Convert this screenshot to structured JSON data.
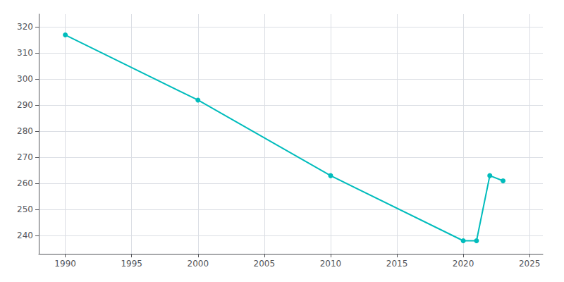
{
  "chart_data": {
    "type": "line",
    "x": [
      1990,
      2000,
      2010,
      2020,
      2021,
      2022,
      2023
    ],
    "values": [
      317,
      292,
      263,
      238,
      238,
      263,
      261
    ],
    "color": "#00BCBC",
    "marker": "circle",
    "xlim": [
      1988,
      2026
    ],
    "xticks": [
      1990,
      1995,
      2000,
      2005,
      2010,
      2015,
      2020,
      2025
    ],
    "ylim": [
      233,
      325
    ],
    "yticks": [
      240,
      250,
      260,
      270,
      280,
      290,
      300,
      310,
      320
    ],
    "grid": true
  }
}
